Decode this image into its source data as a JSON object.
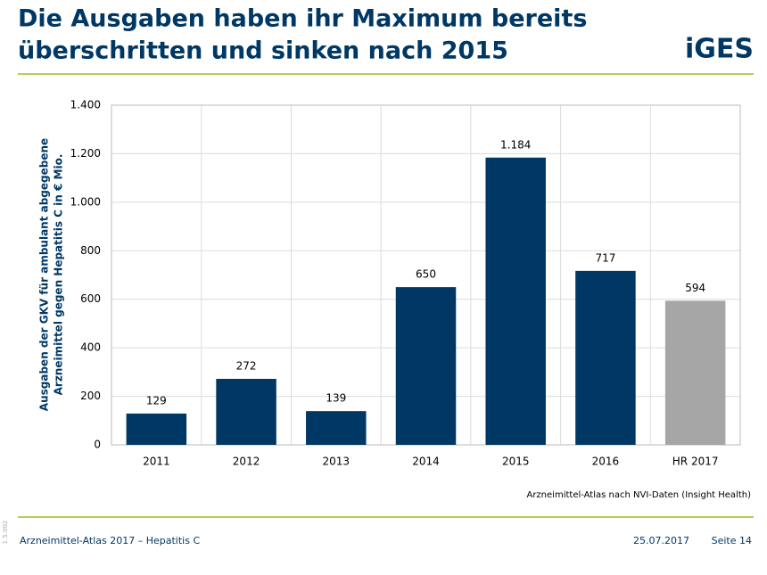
{
  "header": {
    "title": [
      "Die Ausgaben haben ihr Maximum bereits",
      "überschritten und sinken nach 2015"
    ],
    "logo": "iGES"
  },
  "chart_data": {
    "type": "bar",
    "ylabel": [
      "Ausgaben der GKV für ambulant abgegebene",
      "Arzneimittel gegen Hepatitis C in € Mio."
    ],
    "categories": [
      "2011",
      "2012",
      "2013",
      "2014",
      "2015",
      "2016",
      "HR 2017"
    ],
    "values": [
      129,
      272,
      139,
      650,
      1184,
      717,
      594
    ],
    "value_labels": [
      "129",
      "272",
      "139",
      "650",
      "1.184",
      "717",
      "594"
    ],
    "colors": [
      "#003865",
      "#003865",
      "#003865",
      "#003865",
      "#003865",
      "#003865",
      "#a6a6a6"
    ],
    "ylim": [
      0,
      1400
    ],
    "yticks": [
      0,
      200,
      400,
      600,
      800,
      {
        "value": 1000,
        "label": "1.000"
      },
      {
        "value": 1200,
        "label": "1.200"
      },
      {
        "value": 1400,
        "label": "1.400"
      }
    ],
    "grid": true,
    "source": "Arzneimittel-Atlas nach NVI-Daten (Insight Health)"
  },
  "footer": {
    "left": "Arzneimittel-Atlas 2017 – Hepatitis C",
    "date": "25.07.2017",
    "page": "Seite 14",
    "code": "1.5.002"
  }
}
